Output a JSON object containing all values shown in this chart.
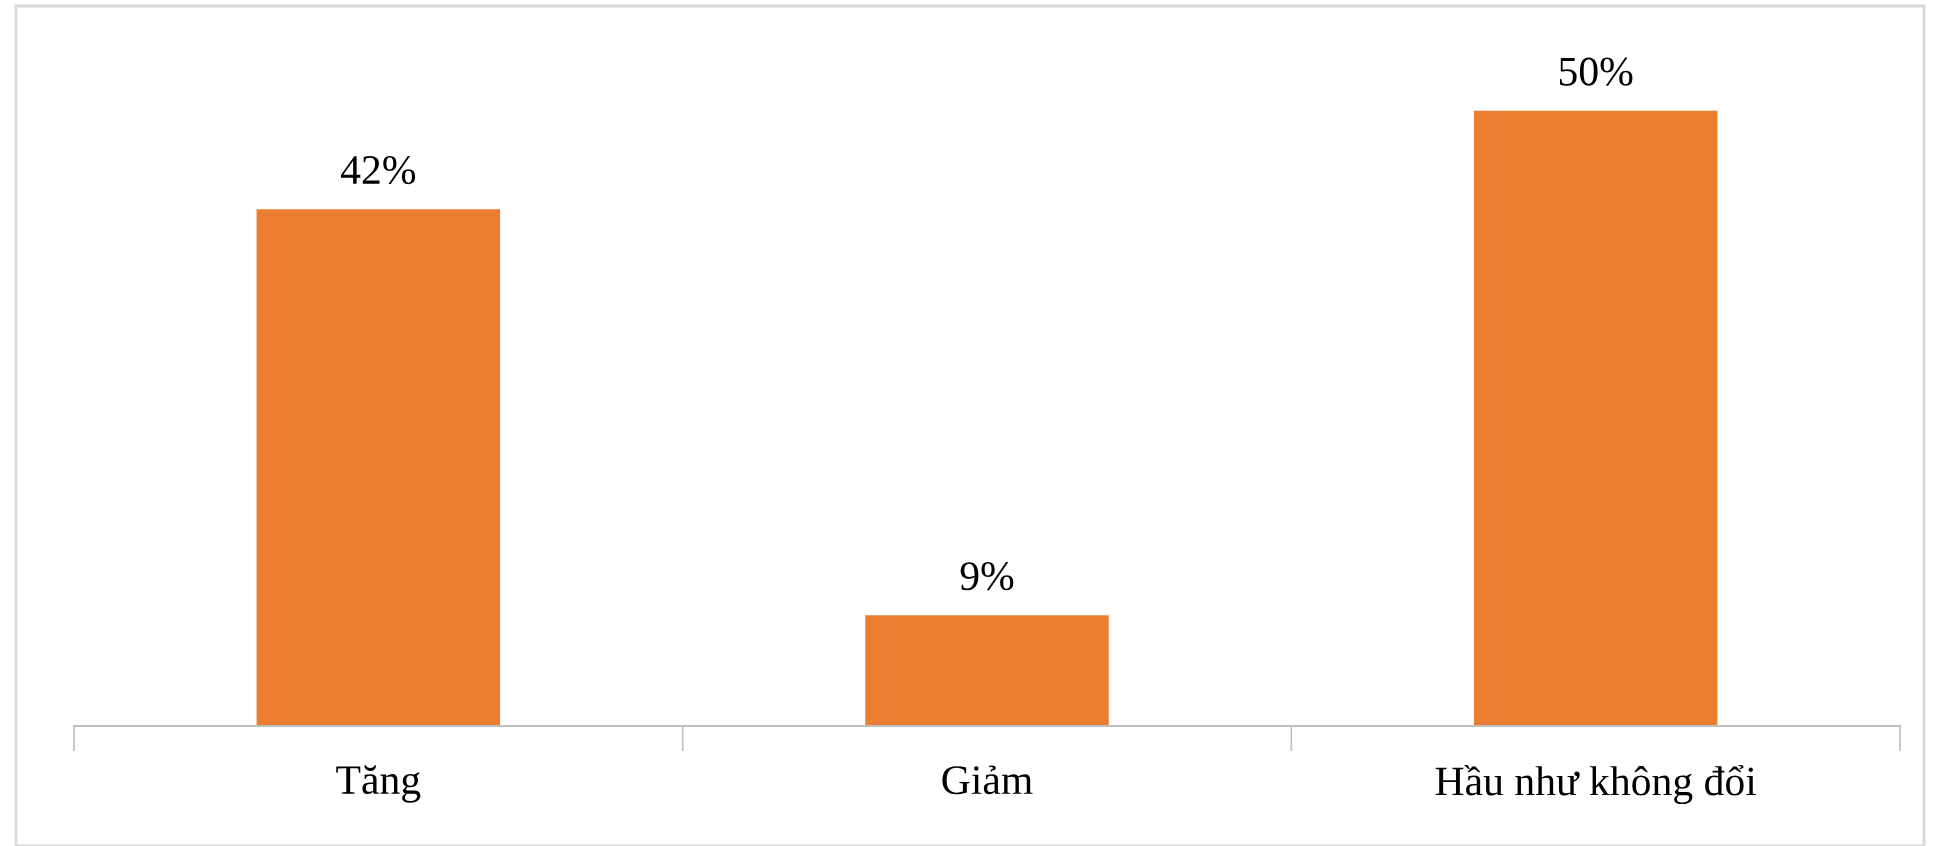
{
  "chart_data": {
    "type": "bar",
    "categories": [
      "Tăng",
      "Giảm",
      "Hầu như không đổi"
    ],
    "values": [
      42,
      9,
      50
    ],
    "color": "#ed7d31",
    "value_labels": [
      "42%",
      "9%",
      "50%"
    ],
    "grid": false,
    "legend": false
  }
}
